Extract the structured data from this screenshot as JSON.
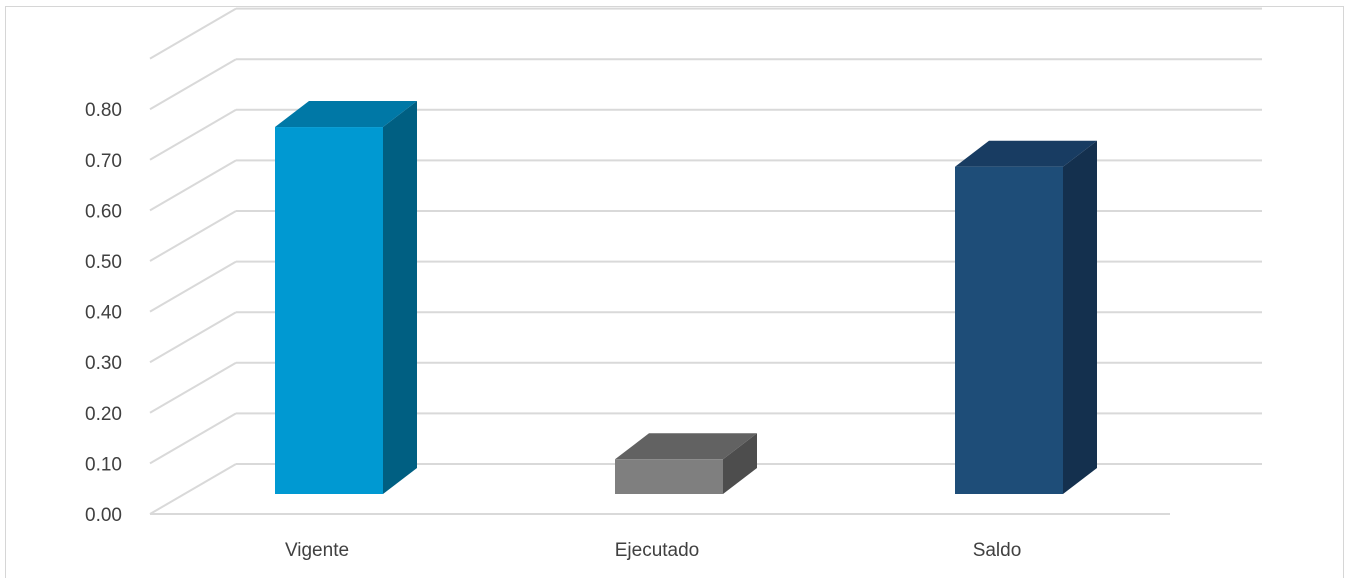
{
  "chart_data": {
    "type": "bar",
    "title": "",
    "categories": [
      "Vigente",
      "Ejecutado",
      "Saldo"
    ],
    "values": [
      0.74,
      0.07,
      0.66
    ],
    "ylim": [
      0,
      0.9
    ],
    "yticks": [
      "0.00",
      "0.10",
      "0.20",
      "0.30",
      "0.40",
      "0.50",
      "0.60",
      "0.70",
      "0.80"
    ],
    "grid": true,
    "legend": "none",
    "colors": {
      "Vigente": {
        "front": "#0099d2",
        "side": "#005f82",
        "top": "#0078a6"
      },
      "Ejecutado": {
        "front": "#7f7f7f",
        "side": "#4d4d4d",
        "top": "#626262"
      },
      "Saldo": {
        "front": "#1e4d78",
        "side": "#14304e",
        "top": "#183c62"
      }
    }
  }
}
